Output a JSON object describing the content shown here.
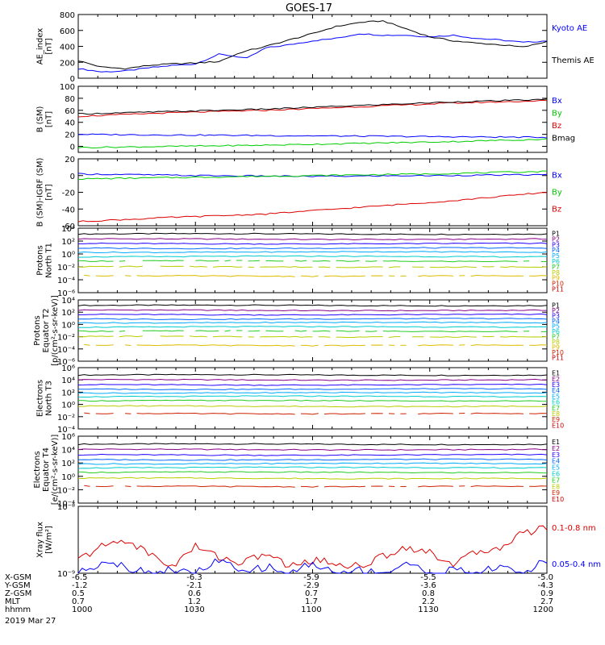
{
  "title": "GOES-17",
  "colors": {
    "black": "#000000",
    "blue": "#0000ff",
    "green": "#00cc00",
    "red": "#dd0000",
    "p": [
      "#000000",
      "#880088",
      "#2200ff",
      "#0066ff",
      "#00aaff",
      "#00cccc",
      "#22cc22",
      "#bbcc00",
      "#ddbb00",
      "#cc2200",
      "#cc0000"
    ]
  },
  "chart_data": [
    {
      "type": "line",
      "ylabel": [
        "AE_index",
        "[nT]"
      ],
      "yscale": "linear",
      "ylim": [
        0,
        800
      ],
      "yticks": [
        {
          "v": 0,
          "l": "0"
        },
        {
          "v": 200,
          "l": "200"
        },
        {
          "v": 400,
          "l": "400"
        },
        {
          "v": 600,
          "l": "600"
        },
        {
          "v": 800,
          "l": "800"
        }
      ],
      "series": [
        {
          "name": "Kyoto AE",
          "color": "blue",
          "x": [
            0,
            0.05,
            0.1,
            0.15,
            0.2,
            0.25,
            0.3,
            0.33,
            0.36,
            0.4,
            0.45,
            0.5,
            0.55,
            0.6,
            0.65,
            0.7,
            0.75,
            0.8,
            0.85,
            0.9,
            0.95,
            1
          ],
          "y": [
            120,
            80,
            90,
            130,
            160,
            180,
            300,
            280,
            250,
            380,
            420,
            470,
            500,
            560,
            540,
            540,
            520,
            540,
            500,
            480,
            450,
            470
          ]
        },
        {
          "name": "Themis AE",
          "color": "black",
          "x": [
            0,
            0.05,
            0.1,
            0.15,
            0.2,
            0.25,
            0.3,
            0.35,
            0.4,
            0.45,
            0.5,
            0.55,
            0.6,
            0.65,
            0.7,
            0.75,
            0.8,
            0.85,
            0.9,
            0.95,
            1
          ],
          "y": [
            220,
            140,
            120,
            160,
            180,
            190,
            210,
            330,
            400,
            480,
            560,
            650,
            700,
            720,
            620,
            520,
            470,
            440,
            420,
            390,
            460
          ]
        }
      ]
    },
    {
      "type": "line",
      "ylabel": [
        "B (SM)",
        "[nT]"
      ],
      "yscale": "linear",
      "ylim": [
        -10,
        100
      ],
      "yticks": [
        {
          "v": 0,
          "l": "0"
        },
        {
          "v": 20,
          "l": "20"
        },
        {
          "v": 40,
          "l": "40"
        },
        {
          "v": 60,
          "l": "60"
        },
        {
          "v": 80,
          "l": "80"
        },
        {
          "v": 100,
          "l": "100"
        }
      ],
      "series": [
        {
          "name": "Bx",
          "color": "blue",
          "x": [
            0,
            0.2,
            0.4,
            0.6,
            0.8,
            1
          ],
          "y": [
            20,
            19,
            18,
            17,
            16,
            15
          ]
        },
        {
          "name": "By",
          "color": "green",
          "x": [
            0,
            0.2,
            0.4,
            0.6,
            0.8,
            1
          ],
          "y": [
            -2,
            0,
            2,
            5,
            8,
            12
          ]
        },
        {
          "name": "Bz",
          "color": "red",
          "x": [
            0,
            0.2,
            0.4,
            0.6,
            0.8,
            1
          ],
          "y": [
            50,
            56,
            60,
            66,
            72,
            76
          ]
        },
        {
          "name": "Bmag",
          "color": "black",
          "x": [
            0,
            0.2,
            0.4,
            0.6,
            0.8,
            1
          ],
          "y": [
            54,
            58,
            62,
            68,
            74,
            78
          ]
        }
      ]
    },
    {
      "type": "line",
      "ylabel": [
        "B (SM)-IGRF (SM)",
        "[nT]"
      ],
      "yscale": "linear",
      "ylim": [
        -60,
        20
      ],
      "yticks": [
        {
          "v": -60,
          "l": "-60"
        },
        {
          "v": -40,
          "l": "-40"
        },
        {
          "v": -20,
          "l": "-20"
        },
        {
          "v": 0,
          "l": "0"
        },
        {
          "v": 20,
          "l": "20"
        }
      ],
      "series": [
        {
          "name": "Bx",
          "color": "blue",
          "x": [
            0,
            0.25,
            0.5,
            0.75,
            1
          ],
          "y": [
            2,
            0,
            -1,
            0,
            1
          ]
        },
        {
          "name": "By",
          "color": "green",
          "x": [
            0,
            0.25,
            0.5,
            0.75,
            1
          ],
          "y": [
            -4,
            -2,
            0,
            2,
            5
          ]
        },
        {
          "name": "Bz",
          "color": "red",
          "x": [
            0,
            0.2,
            0.4,
            0.6,
            0.8,
            1
          ],
          "y": [
            -55,
            -50,
            -46,
            -38,
            -30,
            -20
          ]
        }
      ]
    },
    {
      "type": "line",
      "ylabel": [
        "Protons",
        "North T1"
      ],
      "yscale": "log",
      "ylim": [
        -6,
        4
      ],
      "yticks": [
        {
          "v": 4,
          "l": "10⁴"
        },
        {
          "v": 2,
          "l": "10²"
        },
        {
          "v": 0,
          "l": "10⁰"
        },
        {
          "v": -2,
          "l": "10⁻²"
        },
        {
          "v": -4,
          "l": "10⁻⁴"
        },
        {
          "v": -6,
          "l": "10⁻⁶"
        }
      ],
      "series": [
        {
          "name": "P1",
          "color": "p0",
          "level": 3.1
        },
        {
          "name": "P2",
          "color": "p1",
          "level": 2.3
        },
        {
          "name": "P3",
          "color": "p2",
          "level": 1.6
        },
        {
          "name": "P4",
          "color": "p3",
          "level": 0.9
        },
        {
          "name": "P5",
          "color": "p4",
          "level": 0.3
        },
        {
          "name": "P6",
          "color": "p5",
          "level": -0.4
        },
        {
          "name": "P7",
          "color": "p6",
          "level": -1.1
        },
        {
          "name": "P8",
          "color": "p7",
          "level": -2
        },
        {
          "name": "P9",
          "color": "p8",
          "level": -3.4
        },
        {
          "name": "P10",
          "color": "p9",
          "level": null
        },
        {
          "name": "P11",
          "color": "p10",
          "level": null
        }
      ]
    },
    {
      "type": "line",
      "ylabel": [
        "Protons",
        "Equator T2",
        "[p/(cm²-s-sr-keV)]"
      ],
      "yscale": "log",
      "ylim": [
        -6,
        4
      ],
      "yticks": [
        {
          "v": 4,
          "l": "10⁴"
        },
        {
          "v": 2,
          "l": "10²"
        },
        {
          "v": 0,
          "l": "10⁰"
        },
        {
          "v": -2,
          "l": "10⁻²"
        },
        {
          "v": -4,
          "l": "10⁻⁴"
        },
        {
          "v": -6,
          "l": "10⁻⁶"
        }
      ],
      "series": [
        {
          "name": "P1",
          "color": "p0",
          "level": 3.1
        },
        {
          "name": "P2",
          "color": "p1",
          "level": 2.3
        },
        {
          "name": "P3",
          "color": "p2",
          "level": 1.6
        },
        {
          "name": "P4",
          "color": "p3",
          "level": 0.9
        },
        {
          "name": "P5",
          "color": "p4",
          "level": 0.3
        },
        {
          "name": "P6",
          "color": "p5",
          "level": -0.4
        },
        {
          "name": "P7",
          "color": "p6",
          "level": -1.1
        },
        {
          "name": "P8",
          "color": "p7",
          "level": -2
        },
        {
          "name": "P9",
          "color": "p8",
          "level": -3.4
        },
        {
          "name": "P10",
          "color": "p9",
          "level": null
        },
        {
          "name": "P11",
          "color": "p10",
          "level": null
        }
      ]
    },
    {
      "type": "line",
      "ylabel": [
        "Electrons",
        "North T3"
      ],
      "yscale": "log",
      "ylim": [
        -4,
        6
      ],
      "yticks": [
        {
          "v": 6,
          "l": "10⁶"
        },
        {
          "v": 4,
          "l": "10⁴"
        },
        {
          "v": 2,
          "l": "10²"
        },
        {
          "v": 0,
          "l": "10⁰"
        },
        {
          "v": -2,
          "l": "10⁻²"
        },
        {
          "v": -4,
          "l": "10⁻⁴"
        }
      ],
      "series": [
        {
          "name": "E1",
          "color": "p0",
          "level": 4.8
        },
        {
          "name": "E2",
          "color": "p1",
          "level": 4.0
        },
        {
          "name": "E3",
          "color": "p2",
          "level": 3.2
        },
        {
          "name": "E4",
          "color": "p3",
          "level": 2.5
        },
        {
          "name": "E5",
          "color": "p4",
          "level": 1.9
        },
        {
          "name": "E6",
          "color": "p5",
          "level": 1.3
        },
        {
          "name": "E7",
          "color": "p6",
          "level": 0.6
        },
        {
          "name": "E8",
          "color": "p7",
          "level": -0.3
        },
        {
          "name": "E9",
          "color": "p9",
          "level": -1.5
        },
        {
          "name": "E10",
          "color": "p10",
          "level": null
        }
      ]
    },
    {
      "type": "line",
      "ylabel": [
        "Electrons",
        "Equator T4",
        "[e/(cm²-s-sr-keV)]"
      ],
      "yscale": "log",
      "ylim": [
        -4,
        6
      ],
      "yticks": [
        {
          "v": 6,
          "l": "10⁶"
        },
        {
          "v": 4,
          "l": "10⁴"
        },
        {
          "v": 2,
          "l": "10²"
        },
        {
          "v": 0,
          "l": "10⁰"
        },
        {
          "v": -2,
          "l": "10⁻²"
        },
        {
          "v": -4,
          "l": "10⁻⁴"
        }
      ],
      "series": [
        {
          "name": "E1",
          "color": "p0",
          "level": 4.8
        },
        {
          "name": "E2",
          "color": "p1",
          "level": 4.0
        },
        {
          "name": "E3",
          "color": "p2",
          "level": 3.2
        },
        {
          "name": "E4",
          "color": "p3",
          "level": 2.5
        },
        {
          "name": "E5",
          "color": "p4",
          "level": 1.9
        },
        {
          "name": "E6",
          "color": "p5",
          "level": 1.3
        },
        {
          "name": "E7",
          "color": "p6",
          "level": 0.6
        },
        {
          "name": "E8",
          "color": "p7",
          "level": -0.3
        },
        {
          "name": "E9",
          "color": "p9",
          "level": -1.5
        },
        {
          "name": "E10",
          "color": "p10",
          "level": null
        }
      ]
    },
    {
      "type": "line",
      "ylabel": [
        "Xray flux",
        "[W/m²]"
      ],
      "yscale": "log",
      "ylim": [
        -9,
        -8
      ],
      "yticks": [
        {
          "v": -8,
          "l": "10⁻⁸"
        },
        {
          "v": -9,
          "l": "10⁻⁹"
        }
      ],
      "series": [
        {
          "name": "0.1-0.8 nm",
          "color": "red",
          "x": [
            0,
            0.05,
            0.1,
            0.15,
            0.2,
            0.25,
            0.3,
            0.35,
            0.4,
            0.45,
            0.5,
            0.55,
            0.6,
            0.65,
            0.7,
            0.75,
            0.8,
            0.85,
            0.9,
            0.95,
            1
          ],
          "y": [
            -8.8,
            -8.6,
            -8.5,
            -8.7,
            -8.9,
            -8.6,
            -8.75,
            -8.85,
            -8.7,
            -8.9,
            -8.8,
            -8.85,
            -8.9,
            -8.75,
            -8.6,
            -8.7,
            -8.85,
            -8.7,
            -8.6,
            -8.4,
            -8.3
          ]
        },
        {
          "name": "0.05-0.4 nm",
          "color": "blue",
          "x": [
            0,
            0.06,
            0.1,
            0.15,
            0.2,
            0.25,
            0.3,
            0.35,
            0.4,
            0.45,
            0.5,
            0.55,
            0.6,
            0.65,
            0.7,
            0.75,
            0.8,
            0.85,
            0.9,
            0.95,
            1
          ],
          "y": [
            -9,
            -8.8,
            -8.9,
            -9,
            -8.95,
            -9,
            -8.8,
            -9,
            -8.9,
            -9,
            -8.85,
            -9,
            -8.95,
            -9,
            -8.85,
            -9,
            -8.95,
            -9,
            -8.9,
            -9,
            -8.8
          ]
        }
      ]
    }
  ],
  "xaxis": {
    "rows": [
      {
        "label": "X-GSM",
        "values": [
          "-6.5",
          "-6.3",
          "-5.9",
          "-5.5",
          "-5.0"
        ]
      },
      {
        "label": "Y-GSM",
        "values": [
          "-1.2",
          "-2.1",
          "-2.9",
          "-3.6",
          "-4.3"
        ]
      },
      {
        "label": "Z-GSM",
        "values": [
          "0.5",
          "0.6",
          "0.7",
          "0.8",
          "0.9"
        ]
      },
      {
        "label": "MLT",
        "values": [
          "0.7",
          "1.2",
          "1.7",
          "2.2",
          "2.7"
        ]
      },
      {
        "label": "hhmm",
        "values": [
          "1000",
          "1030",
          "1100",
          "1130",
          "1200"
        ]
      }
    ],
    "date": "2019 Mar 27"
  }
}
